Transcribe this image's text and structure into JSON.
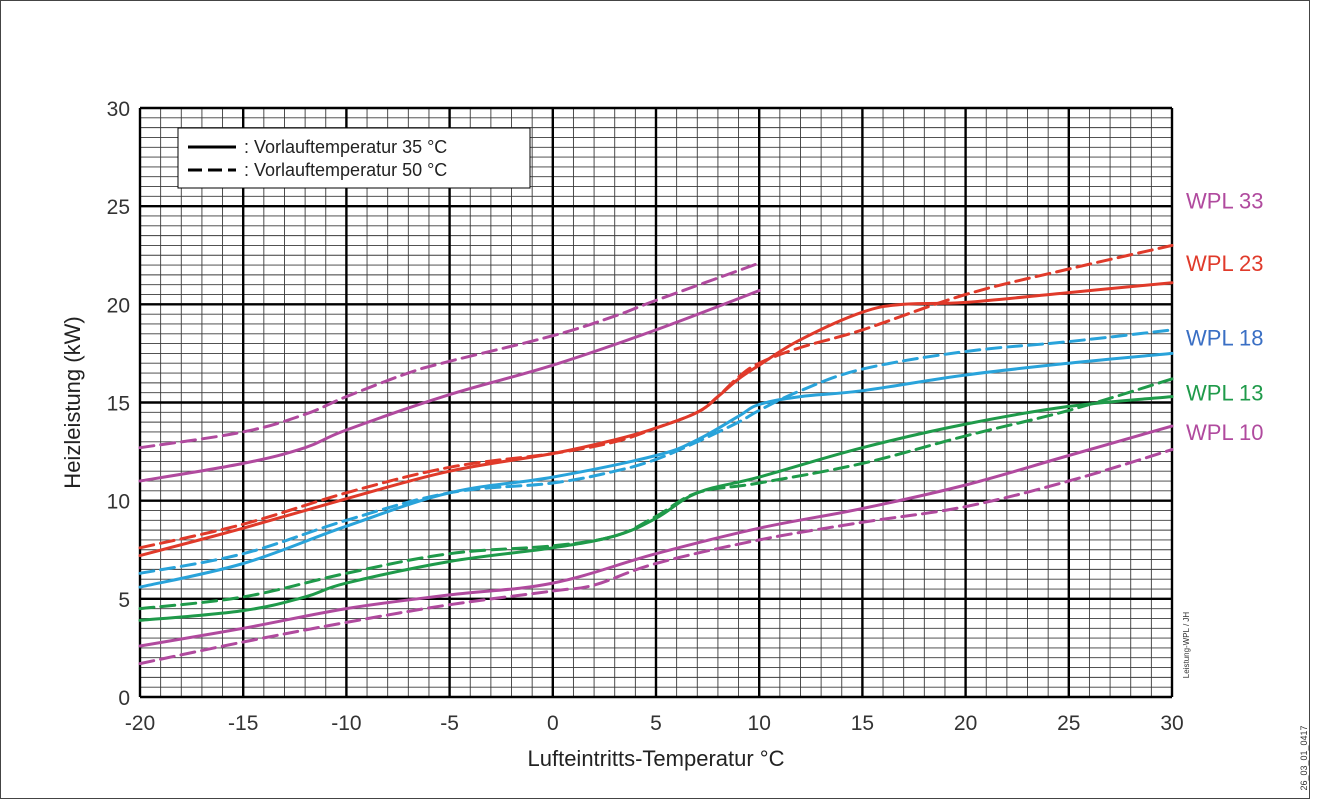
{
  "chart_data": {
    "type": "line",
    "title": "",
    "xlabel": "Lufteintritts-Temperatur °C",
    "ylabel": "Heizleistung (kW)",
    "xlim": [
      -20,
      30
    ],
    "ylim": [
      0,
      30
    ],
    "x_ticks": [
      "-20",
      "-15",
      "-10",
      "-5",
      "0",
      "5",
      "10",
      "15",
      "20",
      "25",
      "30"
    ],
    "y_ticks": [
      "0",
      "5",
      "10",
      "15",
      "20",
      "25",
      "30"
    ],
    "grid": true,
    "legend": {
      "position": "top-left",
      "entries": [
        {
          "style": "solid",
          "text": ": Vorlauftemperatur 35 °C"
        },
        {
          "style": "dashed",
          "text": ": Vorlauftemperatur 50 °C"
        }
      ]
    },
    "series_labels": [
      {
        "text": "WPL 33",
        "color": "#b04a9e",
        "y": 25.3
      },
      {
        "text": "WPL 23",
        "color": "#e03a2a",
        "y": 22.1
      },
      {
        "text": "WPL 18",
        "color": "#3a6fc4",
        "y": 18.3
      },
      {
        "text": "WPL 13",
        "color": "#1f9a4a",
        "y": 15.5
      },
      {
        "text": "WPL 10",
        "color": "#b04a9e",
        "y": 13.5
      }
    ],
    "series": [
      {
        "color": "#b04a9e",
        "style": "solid",
        "points": [
          [
            -20,
            11.0
          ],
          [
            -15,
            11.9
          ],
          [
            -12,
            12.7
          ],
          [
            -10,
            13.6
          ],
          [
            -5,
            15.4
          ],
          [
            0,
            16.9
          ],
          [
            5,
            18.7
          ],
          [
            10,
            20.7
          ]
        ]
      },
      {
        "color": "#b04a9e",
        "style": "dashed",
        "points": [
          [
            -20,
            12.7
          ],
          [
            -15,
            13.5
          ],
          [
            -12,
            14.4
          ],
          [
            -10,
            15.3
          ],
          [
            -7,
            16.5
          ],
          [
            -5,
            17.1
          ],
          [
            0,
            18.4
          ],
          [
            3,
            19.4
          ],
          [
            5,
            20.2
          ],
          [
            10,
            22.1
          ]
        ]
      },
      {
        "color": "#e03a2a",
        "style": "solid",
        "points": [
          [
            -20,
            7.2
          ],
          [
            -15,
            8.6
          ],
          [
            -10,
            10.1
          ],
          [
            -5,
            11.5
          ],
          [
            0,
            12.4
          ],
          [
            3,
            13.1
          ],
          [
            5,
            13.7
          ],
          [
            7,
            14.5
          ],
          [
            8,
            15.3
          ],
          [
            9,
            16.2
          ],
          [
            10,
            16.9
          ],
          [
            12,
            18.2
          ],
          [
            15,
            19.6
          ],
          [
            17,
            20.0
          ],
          [
            20,
            20.1
          ],
          [
            25,
            20.6
          ],
          [
            30,
            21.1
          ]
        ]
      },
      {
        "color": "#e03a2a",
        "style": "dashed",
        "points": [
          [
            -20,
            7.6
          ],
          [
            -15,
            8.8
          ],
          [
            -10,
            10.4
          ],
          [
            -5,
            11.7
          ],
          [
            0,
            12.4
          ],
          [
            3,
            13.0
          ],
          [
            5,
            13.7
          ],
          [
            7,
            14.5
          ],
          [
            8,
            15.3
          ],
          [
            9,
            16.3
          ],
          [
            10,
            17.0
          ],
          [
            12,
            17.8
          ],
          [
            15,
            18.7
          ],
          [
            20,
            20.5
          ],
          [
            25,
            21.8
          ],
          [
            30,
            23.0
          ]
        ]
      },
      {
        "color": "#29a3da",
        "style": "solid",
        "points": [
          [
            -20,
            5.6
          ],
          [
            -15,
            6.8
          ],
          [
            -10,
            8.7
          ],
          [
            -5,
            10.4
          ],
          [
            0,
            11.2
          ],
          [
            5,
            12.3
          ],
          [
            7,
            13.1
          ],
          [
            9,
            14.3
          ],
          [
            10,
            14.9
          ],
          [
            12,
            15.3
          ],
          [
            15,
            15.6
          ],
          [
            20,
            16.4
          ],
          [
            25,
            17.0
          ],
          [
            30,
            17.5
          ]
        ]
      },
      {
        "color": "#29a3da",
        "style": "dashed",
        "points": [
          [
            -20,
            6.3
          ],
          [
            -15,
            7.3
          ],
          [
            -10,
            9.0
          ],
          [
            -5,
            10.4
          ],
          [
            0,
            10.9
          ],
          [
            3,
            11.5
          ],
          [
            5,
            12.1
          ],
          [
            7,
            13.0
          ],
          [
            9,
            14.0
          ],
          [
            10,
            14.6
          ],
          [
            12,
            15.6
          ],
          [
            15,
            16.7
          ],
          [
            20,
            17.6
          ],
          [
            25,
            18.1
          ],
          [
            30,
            18.7
          ]
        ]
      },
      {
        "color": "#1f9a4a",
        "style": "solid",
        "points": [
          [
            -20,
            3.9
          ],
          [
            -15,
            4.4
          ],
          [
            -12,
            5.1
          ],
          [
            -10,
            5.8
          ],
          [
            -5,
            6.9
          ],
          [
            0,
            7.6
          ],
          [
            3,
            8.2
          ],
          [
            5,
            9.1
          ],
          [
            7,
            10.4
          ],
          [
            10,
            11.2
          ],
          [
            15,
            12.7
          ],
          [
            20,
            13.9
          ],
          [
            25,
            14.8
          ],
          [
            30,
            15.3
          ]
        ]
      },
      {
        "color": "#1f9a4a",
        "style": "dashed",
        "points": [
          [
            -20,
            4.5
          ],
          [
            -15,
            5.1
          ],
          [
            -10,
            6.3
          ],
          [
            -5,
            7.3
          ],
          [
            0,
            7.7
          ],
          [
            3,
            8.2
          ],
          [
            5,
            9.2
          ],
          [
            7,
            10.4
          ],
          [
            10,
            10.9
          ],
          [
            15,
            11.9
          ],
          [
            20,
            13.3
          ],
          [
            25,
            14.6
          ],
          [
            30,
            16.2
          ]
        ]
      },
      {
        "color": "#b04a9e",
        "style": "solid",
        "points": [
          [
            -20,
            2.6
          ],
          [
            -15,
            3.5
          ],
          [
            -10,
            4.5
          ],
          [
            -5,
            5.2
          ],
          [
            0,
            5.8
          ],
          [
            5,
            7.3
          ],
          [
            10,
            8.6
          ],
          [
            15,
            9.6
          ],
          [
            20,
            10.8
          ],
          [
            25,
            12.3
          ],
          [
            30,
            13.8
          ]
        ]
      },
      {
        "color": "#b04a9e",
        "style": "dashed",
        "points": [
          [
            -20,
            1.7
          ],
          [
            -15,
            2.8
          ],
          [
            -10,
            3.8
          ],
          [
            -5,
            4.7
          ],
          [
            0,
            5.4
          ],
          [
            2,
            5.7
          ],
          [
            5,
            6.8
          ],
          [
            10,
            8.0
          ],
          [
            15,
            8.9
          ],
          [
            20,
            9.7
          ],
          [
            25,
            11.0
          ],
          [
            30,
            12.6
          ]
        ]
      }
    ],
    "annotations": [
      "Leistung-WPL / JH",
      "26_03_01_0417"
    ]
  }
}
